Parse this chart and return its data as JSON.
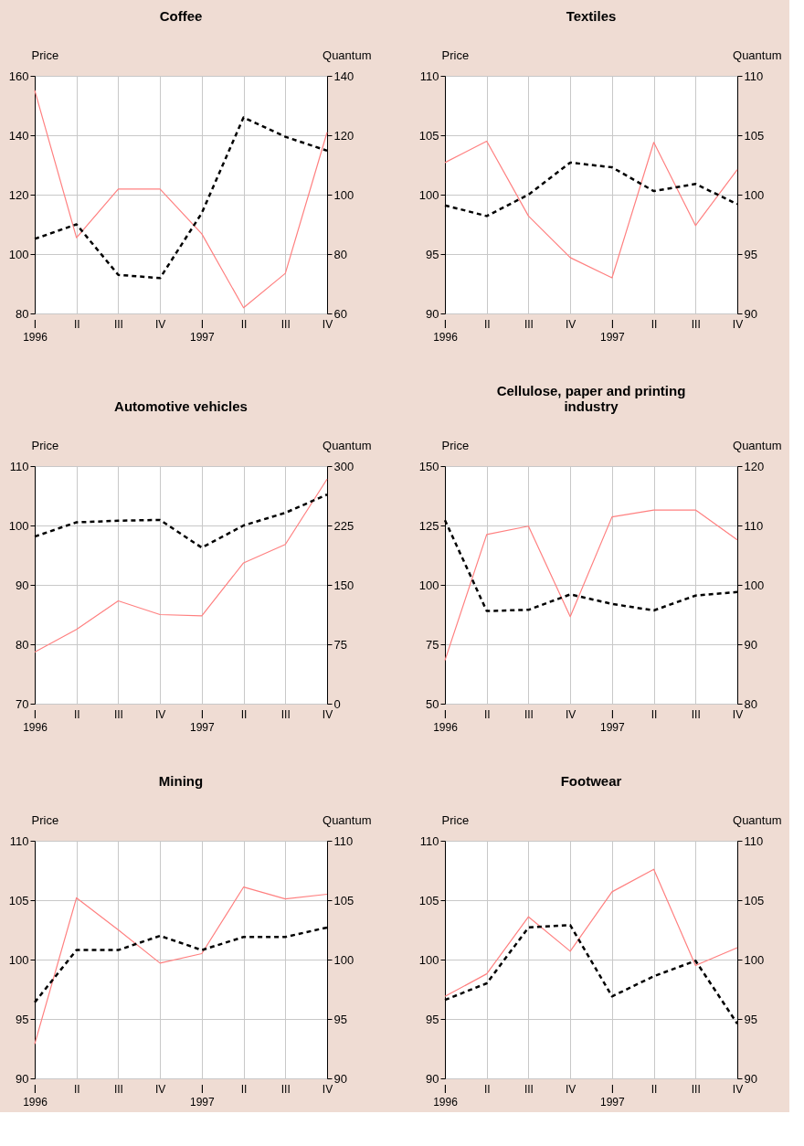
{
  "chart_data": [
    {
      "type": "line",
      "title": "Coffee",
      "ylabel": "Price",
      "y2label": "Quantum",
      "grid": true,
      "marker": "none",
      "categories": [
        "I\n1996",
        "II",
        "III",
        "IV",
        "I\n1997",
        "II",
        "III",
        "IV"
      ],
      "ylim": [
        80,
        160
      ],
      "yticks": [
        80,
        100,
        120,
        140,
        160
      ],
      "y2lim": [
        60,
        140
      ],
      "y2ticks": [
        60,
        80,
        100,
        120,
        140
      ],
      "series": [
        {
          "color": "#ff8080",
          "line_style": "solid",
          "values": [
            155.1,
            105.5,
            121.9,
            121.9,
            106.8,
            81.9,
            93.5,
            141.0
          ]
        },
        {
          "color": "#000000",
          "line_style": "dashed",
          "axis": "y2",
          "values": [
            85.1,
            90.0,
            73.0,
            71.9,
            93.8,
            126.0,
            119.5,
            114.8
          ]
        }
      ]
    },
    {
      "type": "line",
      "title": "Textiles",
      "ylabel": "Price",
      "y2label": "Quantum",
      "grid": true,
      "marker": "none",
      "categories": [
        "I\n1996",
        "II",
        "III",
        "IV",
        "I\n1997",
        "II",
        "III",
        "IV"
      ],
      "ylim": [
        90,
        110
      ],
      "yticks": [
        90,
        95,
        100,
        105,
        110
      ],
      "y2lim": [
        90,
        110
      ],
      "y2ticks": [
        90,
        95,
        100,
        105,
        110
      ],
      "series": [
        {
          "color": "#ff8080",
          "line_style": "solid",
          "values": [
            102.7,
            104.5,
            98.2,
            94.7,
            93.0,
            104.4,
            97.4,
            102.1
          ]
        },
        {
          "color": "#000000",
          "line_style": "dashed",
          "axis": "y2",
          "values": [
            99.1,
            98.2,
            100.0,
            102.7,
            102.3,
            100.3,
            100.9,
            99.2
          ]
        }
      ]
    },
    {
      "type": "line",
      "title": "Automotive vehicles",
      "ylabel": "Price",
      "y2label": "Quantum",
      "grid": true,
      "marker": "none",
      "categories": [
        "I\n1996",
        "II",
        "III",
        "IV",
        "I\n1997",
        "II",
        "III",
        "IV"
      ],
      "ylim": [
        70,
        110
      ],
      "yticks": [
        70,
        80,
        90,
        100,
        110
      ],
      "y2lim": [
        0,
        300
      ],
      "y2ticks": [
        0,
        75,
        150,
        225,
        300
      ],
      "series": [
        {
          "color": "#ff8080",
          "line_style": "solid",
          "values": [
            78.7,
            82.5,
            87.3,
            85.0,
            84.8,
            93.7,
            96.8,
            107.8
          ]
        },
        {
          "color": "#000000",
          "line_style": "dashed",
          "axis": "y2",
          "values": [
            211,
            229,
            231,
            232,
            197,
            225,
            241,
            264
          ]
        }
      ]
    },
    {
      "type": "line",
      "title": "Cellulose, paper and printing industry",
      "ylabel": "Price",
      "y2label": "Quantum",
      "grid": true,
      "marker": "none",
      "categories": [
        "I\n1996",
        "II",
        "III",
        "IV",
        "I\n1997",
        "II",
        "III",
        "IV"
      ],
      "ylim": [
        50,
        150
      ],
      "yticks": [
        50,
        75,
        100,
        125,
        150
      ],
      "y2lim": [
        80,
        120
      ],
      "y2ticks": [
        80,
        90,
        100,
        110,
        120
      ],
      "series": [
        {
          "color": "#ff8080",
          "line_style": "solid",
          "values": [
            68.2,
            121.2,
            124.7,
            86.6,
            128.6,
            131.5,
            131.5,
            118.9
          ]
        },
        {
          "color": "#000000",
          "line_style": "dashed",
          "axis": "y2",
          "values": [
            110.9,
            95.6,
            95.8,
            98.4,
            96.8,
            95.7,
            98.2,
            98.8
          ]
        }
      ]
    },
    {
      "type": "line",
      "title": "Mining",
      "ylabel": "Price",
      "y2label": "Quantum",
      "grid": true,
      "marker": "none",
      "categories": [
        "I\n1996",
        "II",
        "III",
        "IV",
        "I\n1997",
        "II",
        "III",
        "IV"
      ],
      "ylim": [
        90,
        110
      ],
      "yticks": [
        90,
        95,
        100,
        105,
        110
      ],
      "y2lim": [
        90,
        110
      ],
      "y2ticks": [
        90,
        95,
        100,
        105,
        110
      ],
      "series": [
        {
          "color": "#ff8080",
          "line_style": "solid",
          "values": [
            92.9,
            105.2,
            102.5,
            99.7,
            100.5,
            106.1,
            105.1,
            105.5
          ]
        },
        {
          "color": "#000000",
          "line_style": "dashed",
          "axis": "y2",
          "values": [
            96.4,
            100.8,
            100.8,
            102.0,
            100.8,
            101.9,
            101.9,
            102.7
          ]
        }
      ]
    },
    {
      "type": "line",
      "title": "Footwear",
      "ylabel": "Price",
      "y2label": "Quantum",
      "grid": true,
      "marker": "none",
      "categories": [
        "I\n1996",
        "II",
        "III",
        "IV",
        "I\n1997",
        "II",
        "III",
        "IV"
      ],
      "ylim": [
        90,
        110
      ],
      "yticks": [
        90,
        95,
        100,
        105,
        110
      ],
      "y2lim": [
        90,
        110
      ],
      "y2ticks": [
        90,
        95,
        100,
        105,
        110
      ],
      "series": [
        {
          "color": "#ff8080",
          "line_style": "solid",
          "values": [
            96.9,
            98.8,
            103.6,
            100.7,
            105.7,
            107.6,
            99.5,
            101.0
          ]
        },
        {
          "color": "#000000",
          "line_style": "dashed",
          "axis": "y2",
          "values": [
            96.6,
            98.0,
            102.7,
            102.9,
            96.9,
            98.6,
            99.9,
            94.6
          ]
        }
      ]
    }
  ]
}
